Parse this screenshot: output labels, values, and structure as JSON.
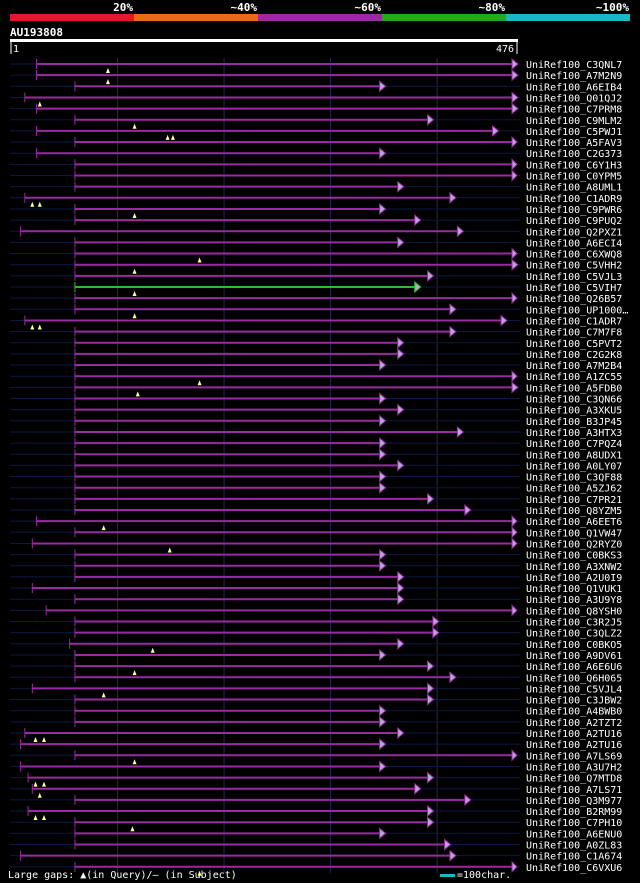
{
  "colors": {
    "background": "#000000",
    "hit": "#9a2aa3",
    "hit_highlight": "#33b833",
    "arrow_fill": "#b8a6d8",
    "track": "#0c1844",
    "grid": "#222a4a",
    "gap_marker": "#ffff99",
    "scale": "#ffffff",
    "legend_bar": "#17b8c8"
  },
  "legend": {
    "bands": [
      {
        "label": "20%",
        "color": "#e6162c"
      },
      {
        "label": "~40%",
        "color": "#e86a1c"
      },
      {
        "label": "~60%",
        "color": "#9a2aa3"
      },
      {
        "label": "~80%",
        "color": "#23a81f"
      },
      {
        "label": "~100%",
        "color": "#17b8c8"
      }
    ]
  },
  "query": {
    "id": "AU193808",
    "start_label": "1",
    "end_label": "476",
    "length": 476
  },
  "footer": {
    "text": "Large gaps: ▲(in Query)/– (in Subject)",
    "scale_text": "=100char."
  },
  "chart_data": {
    "type": "alignment-overview",
    "x_unit": "query position (residues)",
    "xlim": [
      1,
      476
    ],
    "hits": [
      {
        "name": "UniRef100_C3QNL7",
        "start": 25,
        "end": 476,
        "gaps": [
          92
        ]
      },
      {
        "name": "UniRef100_A7M2N9",
        "start": 25,
        "end": 476,
        "gaps": [
          92
        ]
      },
      {
        "name": "UniRef100_A6EIB4",
        "start": 61,
        "end": 347,
        "gaps": []
      },
      {
        "name": "UniRef100_Q01QJ2",
        "start": 14,
        "end": 476,
        "gaps": [
          28
        ]
      },
      {
        "name": "UniRef100_C7PRM8",
        "start": 25,
        "end": 476,
        "gaps": []
      },
      {
        "name": "UniRef100_C9MLM2",
        "start": 61,
        "end": 392,
        "gaps": [
          117
        ]
      },
      {
        "name": "UniRef100_C5PWJ1",
        "start": 25,
        "end": 453,
        "gaps": [
          148,
          153
        ]
      },
      {
        "name": "UniRef100_A5FAV3",
        "start": 61,
        "end": 530,
        "gaps": []
      },
      {
        "name": "UniRef100_C2G373",
        "start": 25,
        "end": 347,
        "gaps": []
      },
      {
        "name": "UniRef100_C6Y1H3",
        "start": 61,
        "end": 530,
        "gaps": []
      },
      {
        "name": "UniRef100_C0YPM5",
        "start": 61,
        "end": 530,
        "gaps": []
      },
      {
        "name": "UniRef100_A8UML1",
        "start": 61,
        "end": 364,
        "gaps": []
      },
      {
        "name": "UniRef100_C1ADR9",
        "start": 14,
        "end": 413,
        "gaps": [
          21,
          28
        ]
      },
      {
        "name": "UniRef100_C9PWR6",
        "start": 61,
        "end": 347,
        "gaps": [
          117
        ]
      },
      {
        "name": "UniRef100_C9PUQ2",
        "start": 61,
        "end": 380,
        "gaps": []
      },
      {
        "name": "UniRef100_Q2PXZ1",
        "start": 10,
        "end": 420,
        "gaps": []
      },
      {
        "name": "UniRef100_A6ECI4",
        "start": 61,
        "end": 364,
        "gaps": []
      },
      {
        "name": "UniRef100_C6XWQ8",
        "start": 61,
        "end": 516,
        "gaps": [
          178
        ]
      },
      {
        "name": "UniRef100_C5VHH2",
        "start": 61,
        "end": 476,
        "gaps": [
          117
        ]
      },
      {
        "name": "UniRef100_C5VJL3",
        "start": 61,
        "end": 392,
        "gaps": []
      },
      {
        "name": "UniRef100_C5VIH7",
        "start": 61,
        "end": 380,
        "gaps": [
          117
        ],
        "highlight": true
      },
      {
        "name": "UniRef100_Q26B57",
        "start": 61,
        "end": 489,
        "gaps": []
      },
      {
        "name": "UniRef100_UP1000…",
        "start": 61,
        "end": 413,
        "gaps": [
          117
        ]
      },
      {
        "name": "UniRef100_C1ADR7",
        "start": 14,
        "end": 461,
        "gaps": [
          21,
          28
        ]
      },
      {
        "name": "UniRef100_C7M7F8",
        "start": 61,
        "end": 413,
        "gaps": []
      },
      {
        "name": "UniRef100_C5PVT2",
        "start": 61,
        "end": 364,
        "gaps": []
      },
      {
        "name": "UniRef100_C2G2K8",
        "start": 61,
        "end": 364,
        "gaps": []
      },
      {
        "name": "UniRef100_A7M2B4",
        "start": 61,
        "end": 347,
        "gaps": []
      },
      {
        "name": "UniRef100_A1ZC55",
        "start": 61,
        "end": 516,
        "gaps": [
          178
        ]
      },
      {
        "name": "UniRef100_A5FDB0",
        "start": 61,
        "end": 476,
        "gaps": [
          120
        ]
      },
      {
        "name": "UniRef100_C3QN66",
        "start": 61,
        "end": 347,
        "gaps": []
      },
      {
        "name": "UniRef100_A3XKU5",
        "start": 61,
        "end": 364,
        "gaps": []
      },
      {
        "name": "UniRef100_B3JP45",
        "start": 61,
        "end": 347,
        "gaps": []
      },
      {
        "name": "UniRef100_A3HTX3",
        "start": 61,
        "end": 420,
        "gaps": []
      },
      {
        "name": "UniRef100_C7PQZ4",
        "start": 61,
        "end": 347,
        "gaps": []
      },
      {
        "name": "UniRef100_A8UDX1",
        "start": 61,
        "end": 347,
        "gaps": []
      },
      {
        "name": "UniRef100_A0LY07",
        "start": 61,
        "end": 364,
        "gaps": []
      },
      {
        "name": "UniRef100_C3QF88",
        "start": 61,
        "end": 347,
        "gaps": []
      },
      {
        "name": "UniRef100_A5ZJ62",
        "start": 61,
        "end": 347,
        "gaps": []
      },
      {
        "name": "UniRef100_C7PR21",
        "start": 61,
        "end": 392,
        "gaps": []
      },
      {
        "name": "UniRef100_Q8YZM5",
        "start": 61,
        "end": 427,
        "gaps": []
      },
      {
        "name": "UniRef100_A6EET6",
        "start": 25,
        "end": 516,
        "gaps": [
          88
        ]
      },
      {
        "name": "UniRef100_Q1VW47",
        "start": 61,
        "end": 516,
        "gaps": []
      },
      {
        "name": "UniRef100_Q2RYZ0",
        "start": 21,
        "end": 516,
        "gaps": [
          150
        ]
      },
      {
        "name": "UniRef100_C0BKS3",
        "start": 61,
        "end": 347,
        "gaps": []
      },
      {
        "name": "UniRef100_A3XNW2",
        "start": 61,
        "end": 347,
        "gaps": []
      },
      {
        "name": "UniRef100_A2U0I9",
        "start": 61,
        "end": 364,
        "gaps": []
      },
      {
        "name": "UniRef100_Q1VUK1",
        "start": 21,
        "end": 364,
        "gaps": []
      },
      {
        "name": "UniRef100_A3U9Y8",
        "start": 61,
        "end": 364,
        "gaps": []
      },
      {
        "name": "UniRef100_Q8YSH0",
        "start": 34,
        "end": 489,
        "gaps": []
      },
      {
        "name": "UniRef100_C3R2J5",
        "start": 61,
        "end": 397,
        "gaps": []
      },
      {
        "name": "UniRef100_C3QLZ2",
        "start": 61,
        "end": 397,
        "gaps": []
      },
      {
        "name": "UniRef100_C0BKO5",
        "start": 56,
        "end": 364,
        "gaps": [
          134
        ]
      },
      {
        "name": "UniRef100_A9DV61",
        "start": 61,
        "end": 347,
        "gaps": []
      },
      {
        "name": "UniRef100_A6E6U6",
        "start": 61,
        "end": 392,
        "gaps": [
          117
        ]
      },
      {
        "name": "UniRef100_Q6H065",
        "start": 61,
        "end": 413,
        "gaps": []
      },
      {
        "name": "UniRef100_C5VJL4",
        "start": 21,
        "end": 392,
        "gaps": [
          88
        ]
      },
      {
        "name": "UniRef100_C3JBW2",
        "start": 61,
        "end": 392,
        "gaps": []
      },
      {
        "name": "UniRef100_A4BWB0",
        "start": 61,
        "end": 347,
        "gaps": []
      },
      {
        "name": "UniRef100_A2TZT2",
        "start": 61,
        "end": 347,
        "gaps": []
      },
      {
        "name": "UniRef100_A2TU16",
        "start": 14,
        "end": 364,
        "gaps": [
          24,
          32
        ]
      },
      {
        "name": "UniRef100_A2TU16",
        "start": 10,
        "end": 347,
        "gaps": []
      },
      {
        "name": "UniRef100_A7LS69",
        "start": 61,
        "end": 516,
        "gaps": [
          117
        ]
      },
      {
        "name": "UniRef100_A3U7H2",
        "start": 10,
        "end": 347,
        "gaps": []
      },
      {
        "name": "UniRef100_Q7MTD8",
        "start": 17,
        "end": 392,
        "gaps": [
          24,
          32
        ]
      },
      {
        "name": "UniRef100_A7LS71",
        "start": 21,
        "end": 380,
        "gaps": [
          28
        ]
      },
      {
        "name": "UniRef100_Q3M977",
        "start": 61,
        "end": 427,
        "gaps": []
      },
      {
        "name": "UniRef100_B2RM99",
        "start": 17,
        "end": 392,
        "gaps": [
          24,
          32
        ]
      },
      {
        "name": "UniRef100_C7PH10",
        "start": 61,
        "end": 392,
        "gaps": [
          115
        ]
      },
      {
        "name": "UniRef100_A6ENU0",
        "start": 61,
        "end": 347,
        "gaps": []
      },
      {
        "name": "UniRef100_A0ZL83",
        "start": 61,
        "end": 408,
        "gaps": []
      },
      {
        "name": "UniRef100_C1A674",
        "start": 10,
        "end": 413,
        "gaps": []
      },
      {
        "name": "UniRef100_C6VXU6",
        "start": 61,
        "end": 516,
        "gaps": [
          178
        ]
      }
    ]
  }
}
